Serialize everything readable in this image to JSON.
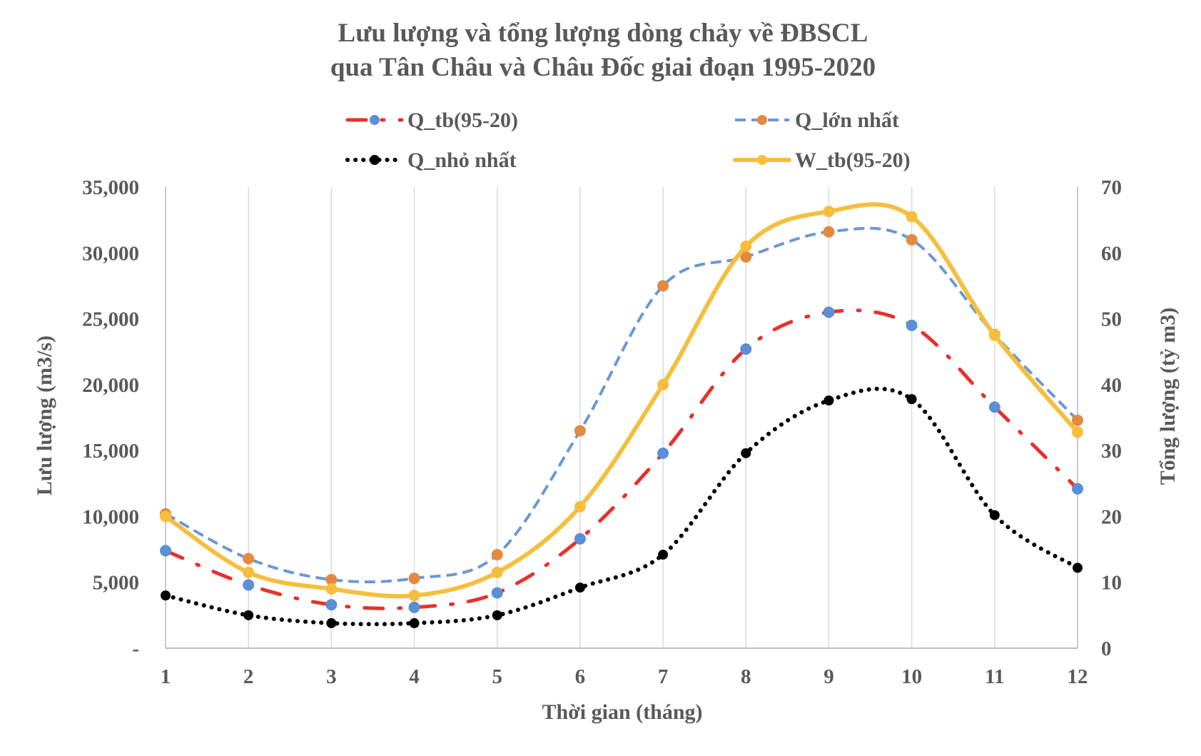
{
  "chart_data": {
    "type": "line",
    "title_lines": [
      "Lưu lượng và tổng lượng dòng chảy về ĐBSCL",
      "qua Tân Châu và Châu Đốc giai đoạn 1995-2020"
    ],
    "xlabel": "Thời gian (tháng)",
    "ylabel": "Lưu lượng (m3/s)",
    "y2label": "Tổng lượng (tỷ m3)",
    "categories": [
      "1",
      "2",
      "3",
      "4",
      "5",
      "6",
      "7",
      "8",
      "9",
      "10",
      "11",
      "12"
    ],
    "ylim": [
      0,
      35000
    ],
    "y2lim": [
      0,
      70
    ],
    "y_ticks": [
      "-",
      "5,000",
      "10,000",
      "15,000",
      "20,000",
      "25,000",
      "30,000",
      "35,000"
    ],
    "y2_ticks": [
      "0",
      "10",
      "20",
      "30",
      "40",
      "50",
      "60",
      "70"
    ],
    "grid": "vertical",
    "legend_position": "top",
    "series": [
      {
        "name": "Q_tb(95-20)",
        "axis": "left",
        "line_color": "#e8302a",
        "marker_color": "#5b8fd6",
        "style": "dash-dot",
        "values": [
          7400,
          4800,
          3300,
          3100,
          4200,
          8300,
          14800,
          22700,
          25500,
          24500,
          18300,
          12100
        ]
      },
      {
        "name": "Q_lớn nhất",
        "axis": "left",
        "line_color": "#6a98d6",
        "marker_color": "#e38a3f",
        "style": "dash",
        "values": [
          10200,
          6800,
          5200,
          5300,
          7100,
          16500,
          27500,
          29700,
          31600,
          31000,
          23800,
          17300
        ]
      },
      {
        "name": "Q_nhỏ nhất",
        "axis": "left",
        "line_color": "#000000",
        "marker_color": "#000000",
        "style": "dot",
        "values": [
          4000,
          2500,
          1900,
          1900,
          2500,
          4600,
          7100,
          14800,
          18800,
          18900,
          10100,
          6100
        ]
      },
      {
        "name": "W_tb(95-20)",
        "axis": "right",
        "line_color": "#f6be3c",
        "marker_color": "#f6be3c",
        "style": "solid",
        "values": [
          20,
          11.5,
          9,
          8,
          11.5,
          21.5,
          40,
          61,
          66.3,
          65.5,
          47.5,
          32.8
        ]
      }
    ]
  }
}
